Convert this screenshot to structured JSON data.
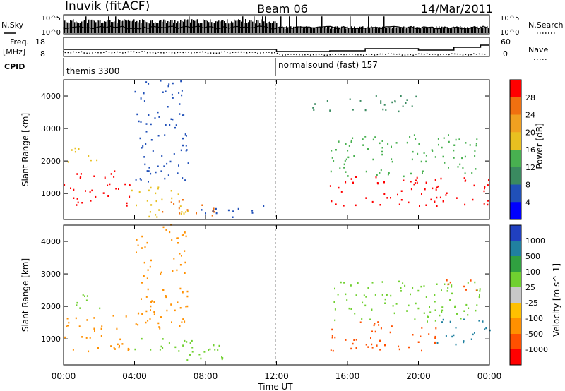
{
  "header": {
    "station": "Inuvik (fitACF)",
    "beam": "Beam 06",
    "date": "14/Mar/2011"
  },
  "nsky_panel": {
    "label": "N.Sky",
    "right_label": "N.Search",
    "y_ticks_left": [
      "10^5",
      "10^0"
    ],
    "y_ticks_right": [
      "10^5",
      "10^0"
    ]
  },
  "freq_panel": {
    "label_line1": "Freq.",
    "label_line2": "[MHz]",
    "right_label": "Nave",
    "y_ticks_left": [
      "18",
      "8"
    ],
    "y_ticks_right": [
      "60",
      "0"
    ]
  },
  "cpid_panel": {
    "label": "CPID",
    "segments": [
      {
        "start_hour": 0,
        "text": "themis 3300"
      },
      {
        "start_hour": 12,
        "text": "normalsound (fast) 157"
      }
    ]
  },
  "colors": {
    "power_scale": [
      "#0000ff",
      "#2050b8",
      "#3a8a60",
      "#48b050",
      "#e8c020",
      "#f0a020",
      "#f07010",
      "#ff0000"
    ],
    "velocity_scale": [
      "#ff0000",
      "#ff5000",
      "#ff9000",
      "#ffc000",
      "#c8c8c8",
      "#70d030",
      "#30a040",
      "#2080a0",
      "#2040c0"
    ]
  },
  "chart_data": [
    {
      "type": "heatmap",
      "name": "power",
      "xlabel": "",
      "ylabel": "Slant Range [km]",
      "xlim": [
        0,
        24
      ],
      "ylim": [
        200,
        4500
      ],
      "y_ticks": [
        "1000",
        "2000",
        "3000",
        "4000"
      ],
      "colorbar": {
        "label": "Power [dB]",
        "ticks": [
          "4",
          "8",
          "12",
          "16",
          "20",
          "24",
          "28"
        ],
        "range": [
          0,
          32
        ]
      },
      "features": [
        {
          "x": [
            0.0,
            3.7
          ],
          "y": [
            600,
            1700
          ],
          "value": 28
        },
        {
          "x": [
            0.0,
            2.0
          ],
          "y": [
            1900,
            2400
          ],
          "value": 16
        },
        {
          "x": [
            3.7,
            7.0
          ],
          "y": [
            250,
            1200
          ],
          "value": 18
        },
        {
          "x": [
            5.5,
            8.5
          ],
          "y": [
            300,
            900
          ],
          "value": 26
        },
        {
          "x": [
            4.0,
            7.0
          ],
          "y": [
            1300,
            4500
          ],
          "value": 6
        },
        {
          "x": [
            7.5,
            11.5
          ],
          "y": [
            250,
            600
          ],
          "value": 6
        },
        {
          "x": [
            15.0,
            24.0
          ],
          "y": [
            600,
            1500
          ],
          "value": 28
        },
        {
          "x": [
            15.0,
            23.5
          ],
          "y": [
            1500,
            2800
          ],
          "value": 12
        },
        {
          "x": [
            14.0,
            20.0
          ],
          "y": [
            3500,
            4000
          ],
          "value": 8
        }
      ]
    },
    {
      "type": "heatmap",
      "name": "velocity",
      "xlabel": "Time UT",
      "ylabel": "Slant Range [km]",
      "xlim": [
        0,
        24
      ],
      "ylim": [
        200,
        4500
      ],
      "x_ticks": [
        "00:00",
        "04:00",
        "08:00",
        "12:00",
        "16:00",
        "20:00",
        "00:00"
      ],
      "y_ticks": [
        "1000",
        "2000",
        "3000",
        "4000"
      ],
      "colorbar": {
        "label": "Velocity [m s^-1]",
        "ticks": [
          "1000",
          "500",
          "100",
          "25",
          "-25",
          "-100",
          "-500",
          "-1000"
        ]
      },
      "features": [
        {
          "x": [
            0.0,
            3.7
          ],
          "y": [
            600,
            1700
          ],
          "value": -100
        },
        {
          "x": [
            0.0,
            2.0
          ],
          "y": [
            1900,
            2400
          ],
          "value": 25
        },
        {
          "x": [
            3.7,
            9.0
          ],
          "y": [
            300,
            1000
          ],
          "value": 25
        },
        {
          "x": [
            4.0,
            7.0
          ],
          "y": [
            1300,
            4500
          ],
          "value": -100
        },
        {
          "x": [
            15.0,
            21.0
          ],
          "y": [
            600,
            1500
          ],
          "value": -500
        },
        {
          "x": [
            21.0,
            24.0
          ],
          "y": [
            800,
            1600
          ],
          "value": 500
        },
        {
          "x": [
            15.0,
            23.5
          ],
          "y": [
            1500,
            2800
          ],
          "value": 25
        },
        {
          "x": [
            21.5,
            23.5
          ],
          "y": [
            2400,
            2800
          ],
          "value": -500
        }
      ]
    }
  ]
}
